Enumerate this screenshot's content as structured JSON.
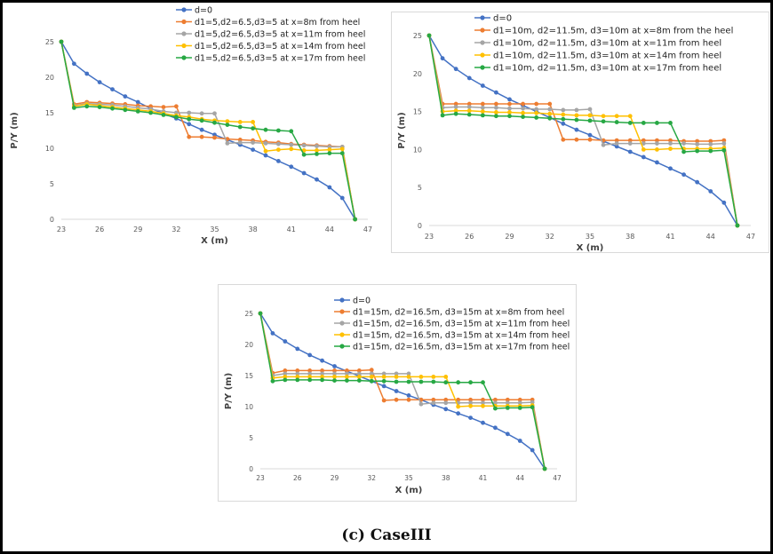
{
  "caption": "(c) CaseIII",
  "chart_data": [
    {
      "type": "line",
      "xlabel": "X (m)",
      "ylabel": "P/Y (m)",
      "xlim": [
        23,
        47
      ],
      "ylim": [
        0,
        25
      ],
      "xticks": [
        "23",
        "26",
        "29",
        "32",
        "35",
        "38",
        "41",
        "44",
        "47"
      ],
      "yticks": [
        "0",
        "5",
        "10",
        "15",
        "20",
        "25"
      ],
      "legend_position": "top-right",
      "series": [
        {
          "name": "d=0",
          "color": "#4472c4",
          "x": [
            23,
            24,
            25,
            26,
            27,
            28,
            29,
            30,
            31,
            32,
            33,
            34,
            35,
            36,
            37,
            38,
            39,
            40,
            41,
            42,
            43,
            44,
            45,
            46
          ],
          "y": [
            25,
            21.9,
            20.5,
            19.3,
            18.3,
            17.3,
            16.5,
            15.6,
            14.9,
            14.2,
            13.4,
            12.6,
            11.9,
            11.2,
            10.5,
            9.8,
            9.0,
            8.2,
            7.4,
            6.5,
            5.6,
            4.5,
            3.0,
            0
          ]
        },
        {
          "name": "d1=5,d2=6.5,d3=5 at x=8m from heel",
          "color": "#ed7d31",
          "x": [
            23,
            24,
            25,
            26,
            27,
            28,
            29,
            30,
            31,
            32,
            33,
            34,
            35,
            36,
            37,
            38,
            39,
            40,
            41,
            42,
            43,
            44,
            45,
            46
          ],
          "y": [
            25,
            16.2,
            16.5,
            16.4,
            16.3,
            16.2,
            16.0,
            15.9,
            15.8,
            15.9,
            11.6,
            11.6,
            11.5,
            11.3,
            11.2,
            11.1,
            10.9,
            10.8,
            10.6,
            10.5,
            10.4,
            10.3,
            10.2,
            0
          ]
        },
        {
          "name": "d1=5,d2=6.5,d3=5 at x=11m from heel",
          "color": "#a5a5a5",
          "x": [
            23,
            24,
            25,
            26,
            27,
            28,
            29,
            30,
            31,
            32,
            33,
            34,
            35,
            36,
            37,
            38,
            39,
            40,
            41,
            42,
            43,
            44,
            45,
            46
          ],
          "y": [
            25,
            16.0,
            16.3,
            16.2,
            16.1,
            15.9,
            15.7,
            15.5,
            15.2,
            15.0,
            15.0,
            14.9,
            14.9,
            10.7,
            10.8,
            10.8,
            10.7,
            10.6,
            10.5,
            10.4,
            10.3,
            10.2,
            10.2,
            0
          ]
        },
        {
          "name": "d1=5,d2=6.5,d3=5 at x=14m from heel",
          "color": "#ffc000",
          "x": [
            23,
            24,
            25,
            26,
            27,
            28,
            29,
            30,
            31,
            32,
            33,
            34,
            35,
            36,
            37,
            38,
            39,
            40,
            41,
            42,
            43,
            44,
            45,
            46
          ],
          "y": [
            25,
            15.9,
            16.2,
            16.0,
            15.8,
            15.6,
            15.4,
            15.2,
            14.9,
            14.6,
            14.4,
            14.1,
            13.9,
            13.8,
            13.7,
            13.7,
            9.6,
            9.8,
            9.9,
            9.7,
            9.7,
            9.8,
            9.9,
            0
          ]
        },
        {
          "name": "d1=5,d2=6.5,d3=5 at x=17m from heel",
          "color": "#27a844",
          "x": [
            23,
            24,
            25,
            26,
            27,
            28,
            29,
            30,
            31,
            32,
            33,
            34,
            35,
            36,
            37,
            38,
            39,
            40,
            41,
            42,
            43,
            44,
            45,
            46
          ],
          "y": [
            25,
            15.7,
            15.9,
            15.8,
            15.6,
            15.4,
            15.2,
            15.0,
            14.7,
            14.4,
            14.1,
            13.9,
            13.6,
            13.3,
            13.0,
            12.8,
            12.6,
            12.5,
            12.4,
            9.1,
            9.2,
            9.3,
            9.3,
            0
          ]
        }
      ]
    },
    {
      "type": "line",
      "xlabel": "X (m)",
      "ylabel": "P/Y (m)",
      "xlim": [
        23,
        47
      ],
      "ylim": [
        0,
        25
      ],
      "xticks": [
        "23",
        "26",
        "29",
        "32",
        "35",
        "38",
        "41",
        "44",
        "47"
      ],
      "yticks": [
        "0",
        "5",
        "10",
        "15",
        "20",
        "25"
      ],
      "legend_position": "top-right",
      "series": [
        {
          "name": "d=0",
          "color": "#4472c4",
          "x": [
            23,
            24,
            25,
            26,
            27,
            28,
            29,
            30,
            31,
            32,
            33,
            34,
            35,
            36,
            37,
            38,
            39,
            40,
            41,
            42,
            43,
            44,
            45,
            46
          ],
          "y": [
            25,
            22.0,
            20.6,
            19.4,
            18.4,
            17.5,
            16.6,
            15.8,
            15.0,
            14.2,
            13.4,
            12.6,
            11.9,
            11.1,
            10.4,
            9.7,
            9.0,
            8.3,
            7.5,
            6.7,
            5.7,
            4.5,
            3.0,
            0
          ]
        },
        {
          "name": "d1=10m, d2=11.5m, d3=10m at x=8m from the heel",
          "color": "#ed7d31",
          "x": [
            23,
            24,
            25,
            26,
            27,
            28,
            29,
            30,
            31,
            32,
            33,
            34,
            35,
            36,
            37,
            38,
            39,
            40,
            41,
            42,
            43,
            44,
            45,
            46
          ],
          "y": [
            25,
            16.0,
            16.0,
            16.0,
            16.0,
            16.0,
            16.0,
            16.0,
            16.0,
            16.0,
            11.3,
            11.3,
            11.3,
            11.2,
            11.2,
            11.2,
            11.2,
            11.2,
            11.2,
            11.1,
            11.1,
            11.1,
            11.2,
            0
          ]
        },
        {
          "name": "d1=10m, d2=11.5m, d3=10m at x=11m from heel",
          "color": "#a5a5a5",
          "x": [
            23,
            24,
            25,
            26,
            27,
            28,
            29,
            30,
            31,
            32,
            33,
            34,
            35,
            36,
            37,
            38,
            39,
            40,
            41,
            42,
            43,
            44,
            45,
            46
          ],
          "y": [
            25,
            15.5,
            15.6,
            15.6,
            15.5,
            15.5,
            15.4,
            15.4,
            15.3,
            15.3,
            15.2,
            15.2,
            15.3,
            10.6,
            10.8,
            10.8,
            10.8,
            10.8,
            10.8,
            10.8,
            10.7,
            10.7,
            10.8,
            0
          ]
        },
        {
          "name": "d1=10m, d2=11.5m, d3=10m at x=14m from heel",
          "color": "#ffc000",
          "x": [
            23,
            24,
            25,
            26,
            27,
            28,
            29,
            30,
            31,
            32,
            33,
            34,
            35,
            36,
            37,
            38,
            39,
            40,
            41,
            42,
            43,
            44,
            45,
            46
          ],
          "y": [
            25,
            15.0,
            15.1,
            15.1,
            15.0,
            14.9,
            14.9,
            14.8,
            14.8,
            14.7,
            14.6,
            14.5,
            14.5,
            14.4,
            14.4,
            14.4,
            10.0,
            10.0,
            10.1,
            10.1,
            10.1,
            10.1,
            10.2,
            0
          ]
        },
        {
          "name": "d1=10m, d2=11.5m, d3=10m at x=17m from heel",
          "color": "#27a844",
          "x": [
            23,
            24,
            25,
            26,
            27,
            28,
            29,
            30,
            31,
            32,
            33,
            34,
            35,
            36,
            37,
            38,
            39,
            40,
            41,
            42,
            43,
            44,
            45,
            46
          ],
          "y": [
            25,
            14.5,
            14.7,
            14.6,
            14.5,
            14.4,
            14.4,
            14.3,
            14.2,
            14.1,
            14.0,
            13.9,
            13.8,
            13.7,
            13.6,
            13.5,
            13.5,
            13.5,
            13.5,
            9.7,
            9.8,
            9.8,
            9.9,
            0
          ]
        }
      ]
    },
    {
      "type": "line",
      "xlabel": "X (m)",
      "ylabel": "P/Y (m)",
      "xlim": [
        23,
        47
      ],
      "ylim": [
        0,
        25
      ],
      "xticks": [
        "23",
        "26",
        "29",
        "32",
        "35",
        "38",
        "41",
        "44",
        "47"
      ],
      "yticks": [
        "0",
        "5",
        "10",
        "15",
        "20",
        "25"
      ],
      "legend_position": "top-right",
      "series": [
        {
          "name": "d=0",
          "color": "#4472c4",
          "x": [
            23,
            24,
            25,
            26,
            27,
            28,
            29,
            30,
            31,
            32,
            33,
            34,
            35,
            36,
            37,
            38,
            39,
            40,
            41,
            42,
            43,
            44,
            45,
            46
          ],
          "y": [
            25,
            21.8,
            20.5,
            19.3,
            18.3,
            17.4,
            16.5,
            15.7,
            14.9,
            14.1,
            13.3,
            12.5,
            11.8,
            11.1,
            10.3,
            9.6,
            8.9,
            8.2,
            7.4,
            6.6,
            5.6,
            4.5,
            3.0,
            0
          ]
        },
        {
          "name": "d1=15m, d2=16.5m, d3=15m at x=8m from heel",
          "color": "#ed7d31",
          "x": [
            23,
            24,
            25,
            26,
            27,
            28,
            29,
            30,
            31,
            32,
            33,
            34,
            35,
            36,
            37,
            38,
            39,
            40,
            41,
            42,
            43,
            44,
            45,
            46
          ],
          "y": [
            25,
            15.4,
            15.8,
            15.8,
            15.8,
            15.8,
            15.8,
            15.8,
            15.8,
            15.9,
            11.0,
            11.1,
            11.1,
            11.1,
            11.1,
            11.1,
            11.1,
            11.1,
            11.1,
            11.1,
            11.1,
            11.1,
            11.1,
            0
          ]
        },
        {
          "name": "d1=15m, d2=16.5m, d3=15m at x=11m from heel",
          "color": "#a5a5a5",
          "x": [
            23,
            24,
            25,
            26,
            27,
            28,
            29,
            30,
            31,
            32,
            33,
            34,
            35,
            36,
            37,
            38,
            39,
            40,
            41,
            42,
            43,
            44,
            45,
            46
          ],
          "y": [
            25,
            15.0,
            15.3,
            15.3,
            15.3,
            15.3,
            15.3,
            15.3,
            15.3,
            15.3,
            15.3,
            15.3,
            15.3,
            10.4,
            10.6,
            10.6,
            10.6,
            10.6,
            10.6,
            10.6,
            10.6,
            10.6,
            10.7,
            0
          ]
        },
        {
          "name": "d1=15m, d2=16.5m, d3=15m at x=14m from heel",
          "color": "#ffc000",
          "x": [
            23,
            24,
            25,
            26,
            27,
            28,
            29,
            30,
            31,
            32,
            33,
            34,
            35,
            36,
            37,
            38,
            39,
            40,
            41,
            42,
            43,
            44,
            45,
            46
          ],
          "y": [
            25,
            14.6,
            14.8,
            14.8,
            14.8,
            14.8,
            14.8,
            14.8,
            14.8,
            14.8,
            14.8,
            14.8,
            14.8,
            14.8,
            14.8,
            14.8,
            10.0,
            10.1,
            10.1,
            10.1,
            10.1,
            10.1,
            10.2,
            0
          ]
        },
        {
          "name": "d1=15m, d2=16.5m, d3=15m at x=17m from heel",
          "color": "#27a844",
          "x": [
            23,
            24,
            25,
            26,
            27,
            28,
            29,
            30,
            31,
            32,
            33,
            34,
            35,
            36,
            37,
            38,
            39,
            40,
            41,
            42,
            43,
            44,
            45,
            46
          ],
          "y": [
            25,
            14.1,
            14.3,
            14.3,
            14.3,
            14.3,
            14.2,
            14.2,
            14.2,
            14.1,
            14.1,
            14.0,
            14.0,
            14.0,
            14.0,
            13.9,
            13.9,
            13.9,
            13.9,
            9.7,
            9.8,
            9.8,
            9.9,
            0
          ]
        }
      ]
    }
  ]
}
